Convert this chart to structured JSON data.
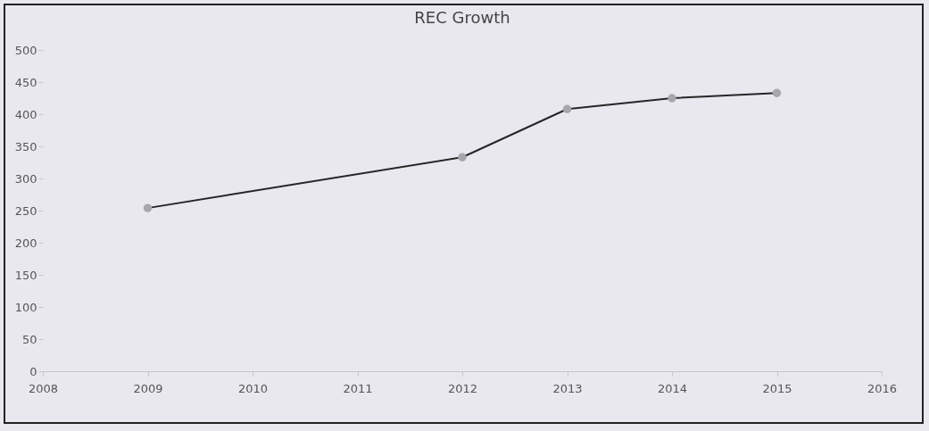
{
  "chart_data": {
    "type": "line",
    "title": "REC Growth",
    "x": [
      2009,
      2012,
      2013,
      2014,
      2015
    ],
    "series": [
      {
        "color": "#262626",
        "values": [
          254,
          333,
          408,
          425,
          433
        ]
      }
    ],
    "xlim": [
      2008,
      2016
    ],
    "xticks": [
      2008,
      2009,
      2010,
      2011,
      2012,
      2013,
      2014,
      2015,
      2016
    ],
    "ylim": [
      0,
      500
    ],
    "yticks": [
      0,
      50,
      100,
      150,
      200,
      250,
      300,
      350,
      400,
      450,
      500
    ],
    "marker": "circle",
    "line_style": "solid",
    "grid": false
  }
}
